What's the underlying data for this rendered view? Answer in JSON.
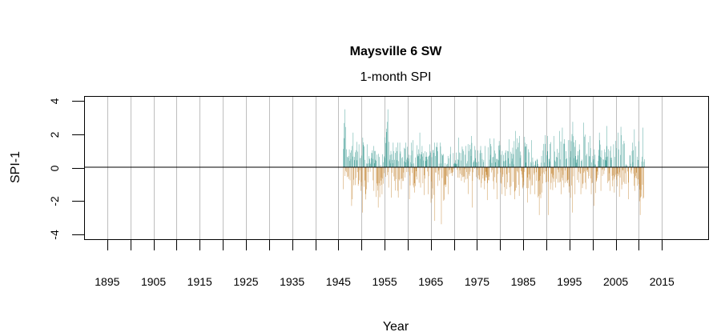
{
  "chart_data": {
    "type": "bar",
    "title": "Maysville 6 SW",
    "subtitle": "1-month SPI",
    "xlabel": "Year",
    "ylabel": "SPI-1",
    "xlim": [
      1890,
      2025
    ],
    "ylim": [
      -4.3,
      4.3
    ],
    "x_ticks": [
      1895,
      1900,
      1905,
      1910,
      1915,
      1920,
      1925,
      1930,
      1935,
      1940,
      1945,
      1950,
      1955,
      1960,
      1965,
      1970,
      1975,
      1980,
      1985,
      1990,
      1995,
      2000,
      2005,
      2010,
      2015
    ],
    "x_tick_labels": [
      "1895",
      "1905",
      "1915",
      "1925",
      "1935",
      "1945",
      "1955",
      "1965",
      "1975",
      "1985",
      "1995",
      "2005",
      "2015"
    ],
    "y_ticks": [
      4,
      2,
      0,
      -2,
      -4
    ],
    "y_tick_labels": [
      "4",
      "2",
      "0",
      "-2",
      "-4"
    ],
    "grid": "vertical lines at x ticks",
    "reference_line": 0,
    "colors": {
      "positive": "#36978f",
      "negative": "#c2822e",
      "grid": "#bebebe"
    },
    "annual_extremes": [
      {
        "year": 1946,
        "max": 3.5,
        "min": -1.3
      },
      {
        "year": 1947,
        "max": 1.3,
        "min": -2.3
      },
      {
        "year": 1948,
        "max": 2.1,
        "min": -1.9
      },
      {
        "year": 1949,
        "max": 1.4,
        "min": -1.4
      },
      {
        "year": 1950,
        "max": 1.8,
        "min": -2.7
      },
      {
        "year": 1951,
        "max": 1.4,
        "min": -1.3
      },
      {
        "year": 1952,
        "max": 1.3,
        "min": -1.4
      },
      {
        "year": 1953,
        "max": 1.0,
        "min": -2.4
      },
      {
        "year": 1954,
        "max": 0.8,
        "min": -1.6
      },
      {
        "year": 1955,
        "max": 3.5,
        "min": -1.2
      },
      {
        "year": 1956,
        "max": 1.5,
        "min": -1.8
      },
      {
        "year": 1957,
        "max": 1.5,
        "min": -1.8
      },
      {
        "year": 1958,
        "max": 1.5,
        "min": -1.3
      },
      {
        "year": 1959,
        "max": 1.5,
        "min": -0.8
      },
      {
        "year": 1960,
        "max": 1.5,
        "min": -1.9
      },
      {
        "year": 1961,
        "max": 1.65,
        "min": -1.5
      },
      {
        "year": 1962,
        "max": 2.1,
        "min": -1.2
      },
      {
        "year": 1963,
        "max": 1.3,
        "min": -1.65
      },
      {
        "year": 1964,
        "max": 1.4,
        "min": -1.6
      },
      {
        "year": 1965,
        "max": 1.5,
        "min": -3.2
      },
      {
        "year": 1966,
        "max": 1.5,
        "min": -1.1
      },
      {
        "year": 1967,
        "max": 1.5,
        "min": -3.4
      },
      {
        "year": 1968,
        "max": 0.7,
        "min": -1.6
      },
      {
        "year": 1969,
        "max": 1.25,
        "min": -0.5
      },
      {
        "year": 1970,
        "max": 0.9,
        "min": -0.6
      },
      {
        "year": 1971,
        "max": 1.8,
        "min": -0.8
      },
      {
        "year": 1972,
        "max": 1.3,
        "min": -0.9
      },
      {
        "year": 1973,
        "max": 1.9,
        "min": -2.4
      },
      {
        "year": 1974,
        "max": 1.3,
        "min": -0.8
      },
      {
        "year": 1975,
        "max": 1.3,
        "min": -1.2
      },
      {
        "year": 1976,
        "max": 1.3,
        "min": -1.3
      },
      {
        "year": 1977,
        "max": 1.75,
        "min": -1.95
      },
      {
        "year": 1978,
        "max": 1.75,
        "min": -1.3
      },
      {
        "year": 1979,
        "max": 1.6,
        "min": -1.9
      },
      {
        "year": 1980,
        "max": 1.0,
        "min": -1.6
      },
      {
        "year": 1981,
        "max": 1.7,
        "min": -1.7
      },
      {
        "year": 1982,
        "max": 1.2,
        "min": -1.65
      },
      {
        "year": 1983,
        "max": 2.2,
        "min": -1.9
      },
      {
        "year": 1984,
        "max": 1.9,
        "min": -1.7
      },
      {
        "year": 1985,
        "max": 1.85,
        "min": -2.1
      },
      {
        "year": 1986,
        "max": 1.65,
        "min": -1.6
      },
      {
        "year": 1987,
        "max": 0.6,
        "min": -1.6
      },
      {
        "year": 1988,
        "max": 0.7,
        "min": -2.85
      },
      {
        "year": 1989,
        "max": 1.95,
        "min": -1.5
      },
      {
        "year": 1990,
        "max": 1.9,
        "min": -2.85
      },
      {
        "year": 1991,
        "max": 1.9,
        "min": -1.35
      },
      {
        "year": 1992,
        "max": 2.2,
        "min": -1.2
      },
      {
        "year": 1993,
        "max": 2.4,
        "min": -1.6
      },
      {
        "year": 1994,
        "max": 1.65,
        "min": -1.5
      },
      {
        "year": 1995,
        "max": 2.75,
        "min": -2.7
      },
      {
        "year": 1996,
        "max": 1.65,
        "min": -1.6
      },
      {
        "year": 1997,
        "max": 1.4,
        "min": -1.6
      },
      {
        "year": 1998,
        "max": 2.7,
        "min": -1.3
      },
      {
        "year": 1999,
        "max": 1.9,
        "min": -1.6
      },
      {
        "year": 2000,
        "max": 1.1,
        "min": -2.3
      },
      {
        "year": 2001,
        "max": 2.1,
        "min": -1.4
      },
      {
        "year": 2002,
        "max": 1.1,
        "min": -0.5
      },
      {
        "year": 2003,
        "max": 2.5,
        "min": -1.4
      },
      {
        "year": 2004,
        "max": 1.4,
        "min": -1.5
      },
      {
        "year": 2005,
        "max": 2.1,
        "min": -1.75
      },
      {
        "year": 2006,
        "max": 2.45,
        "min": -1.3
      },
      {
        "year": 2007,
        "max": 0.2,
        "min": -1.9
      },
      {
        "year": 2008,
        "max": 1.5,
        "min": -1.1
      },
      {
        "year": 2009,
        "max": 2.3,
        "min": -1.4
      },
      {
        "year": 2010,
        "max": 2.4,
        "min": -2.85
      },
      {
        "year": 2011,
        "max": 0.5,
        "min": -1.8
      }
    ]
  }
}
